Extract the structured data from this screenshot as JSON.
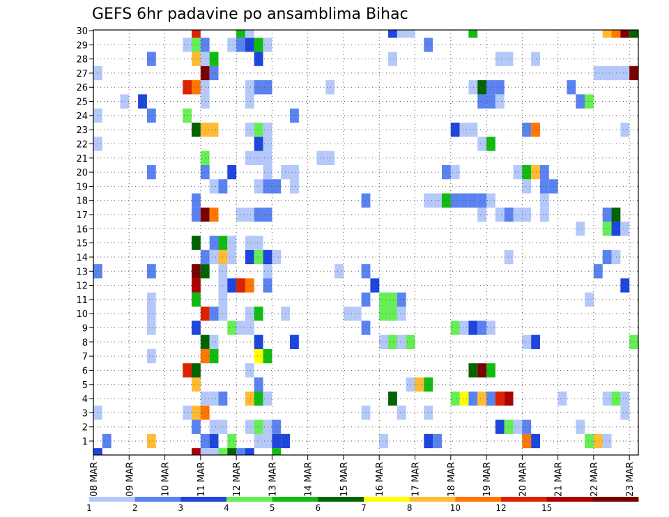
{
  "chart_data": {
    "type": "heatmap",
    "title": "GEFS 6hr padavine po ansamblima Bihac",
    "xlabel": "",
    "ylabel": "",
    "x_tick_labels": [
      "08 MAR",
      "09 MAR",
      "10 MAR",
      "11 MAR",
      "12 MAR",
      "13 MAR",
      "14 MAR",
      "15 MAR",
      "16 MAR",
      "17 MAR",
      "18 MAR",
      "19 MAR",
      "20 MAR",
      "21 MAR",
      "22 MAR",
      "23 MAR"
    ],
    "y_tick_labels": [
      "1",
      "2",
      "3",
      "4",
      "5",
      "6",
      "7",
      "8",
      "9",
      "10",
      "11",
      "12",
      "13",
      "14",
      "15",
      "16",
      "17",
      "18",
      "19",
      "20",
      "21",
      "22",
      "23",
      "24",
      "25",
      "26",
      "27",
      "28",
      "29",
      "30"
    ],
    "x_unit": "6-hour step (4 per day)",
    "y_range": [
      1,
      30
    ],
    "grid": true,
    "legend_position": "bottom",
    "color_levels": [
      "1",
      "2",
      "3",
      "4",
      "5",
      "6",
      "7",
      "8",
      "10",
      "12",
      "15",
      "20"
    ],
    "colors": [
      "#b4c8fa",
      "#5a82f0",
      "#1e46dc",
      "#66ee55",
      "#11bb11",
      "#006400",
      "#ffff00",
      "#ffbb33",
      "#ff7700",
      "#dd2200",
      "#aa0000",
      "#7a0000"
    ],
    "cells": [
      [
        1,
        1,
        2
      ],
      [
        1,
        6,
        8
      ],
      [
        1,
        12,
        2
      ],
      [
        1,
        13,
        3
      ],
      [
        1,
        15,
        4
      ],
      [
        1,
        18,
        1
      ],
      [
        1,
        19,
        1
      ],
      [
        1,
        20,
        3
      ],
      [
        1,
        21,
        3
      ],
      [
        1,
        32,
        1
      ],
      [
        1,
        37,
        3
      ],
      [
        1,
        38,
        2
      ],
      [
        1,
        48,
        10
      ],
      [
        1,
        49,
        3
      ],
      [
        1,
        55,
        4
      ],
      [
        1,
        56,
        8
      ],
      [
        1,
        57,
        1
      ],
      [
        2,
        11,
        2
      ],
      [
        2,
        13,
        1
      ],
      [
        2,
        14,
        1
      ],
      [
        2,
        17,
        1
      ],
      [
        2,
        18,
        4
      ],
      [
        2,
        19,
        1
      ],
      [
        2,
        20,
        2
      ],
      [
        2,
        45,
        3
      ],
      [
        2,
        46,
        4
      ],
      [
        2,
        47,
        1
      ],
      [
        2,
        48,
        2
      ],
      [
        2,
        54,
        1
      ],
      [
        3,
        0,
        1
      ],
      [
        3,
        10,
        1
      ],
      [
        3,
        11,
        8
      ],
      [
        3,
        12,
        10
      ],
      [
        3,
        30,
        1
      ],
      [
        3,
        34,
        1
      ],
      [
        3,
        37,
        1
      ],
      [
        3,
        59,
        1
      ],
      [
        4,
        12,
        1
      ],
      [
        4,
        13,
        1
      ],
      [
        4,
        14,
        2
      ],
      [
        4,
        17,
        8
      ],
      [
        4,
        18,
        5
      ],
      [
        4,
        19,
        1
      ],
      [
        4,
        33,
        6
      ],
      [
        4,
        40,
        4
      ],
      [
        4,
        41,
        7
      ],
      [
        4,
        42,
        2
      ],
      [
        4,
        43,
        8
      ],
      [
        4,
        44,
        2
      ],
      [
        4,
        45,
        12
      ],
      [
        4,
        46,
        15
      ],
      [
        4,
        52,
        1
      ],
      [
        4,
        57,
        1
      ],
      [
        4,
        58,
        4
      ],
      [
        4,
        59,
        1
      ],
      [
        5,
        11,
        8
      ],
      [
        5,
        18,
        2
      ],
      [
        5,
        35,
        1
      ],
      [
        5,
        36,
        8
      ],
      [
        5,
        37,
        5
      ],
      [
        6,
        10,
        12
      ],
      [
        6,
        11,
        6
      ],
      [
        6,
        17,
        1
      ],
      [
        6,
        42,
        6
      ],
      [
        6,
        43,
        20
      ],
      [
        6,
        44,
        5
      ],
      [
        7,
        6,
        1
      ],
      [
        7,
        12,
        10
      ],
      [
        7,
        13,
        5
      ],
      [
        7,
        18,
        7
      ],
      [
        7,
        19,
        5
      ],
      [
        8,
        12,
        6
      ],
      [
        8,
        13,
        1
      ],
      [
        8,
        18,
        3
      ],
      [
        8,
        22,
        3
      ],
      [
        8,
        32,
        1
      ],
      [
        8,
        33,
        4
      ],
      [
        8,
        34,
        1
      ],
      [
        8,
        35,
        4
      ],
      [
        8,
        48,
        1
      ],
      [
        8,
        49,
        3
      ],
      [
        8,
        60,
        4
      ],
      [
        9,
        6,
        1
      ],
      [
        9,
        11,
        3
      ],
      [
        9,
        15,
        4
      ],
      [
        9,
        16,
        1
      ],
      [
        9,
        17,
        1
      ],
      [
        9,
        30,
        2
      ],
      [
        9,
        40,
        4
      ],
      [
        9,
        41,
        1
      ],
      [
        9,
        42,
        3
      ],
      [
        9,
        43,
        2
      ],
      [
        9,
        44,
        1
      ],
      [
        10,
        6,
        1
      ],
      [
        10,
        12,
        12
      ],
      [
        10,
        13,
        2
      ],
      [
        10,
        14,
        1
      ],
      [
        10,
        17,
        1
      ],
      [
        10,
        18,
        5
      ],
      [
        10,
        21,
        1
      ],
      [
        10,
        28,
        1
      ],
      [
        10,
        29,
        1
      ],
      [
        10,
        32,
        4
      ],
      [
        10,
        33,
        4
      ],
      [
        10,
        34,
        1
      ],
      [
        11,
        6,
        1
      ],
      [
        11,
        11,
        5
      ],
      [
        11,
        14,
        1
      ],
      [
        11,
        30,
        2
      ],
      [
        11,
        32,
        4
      ],
      [
        11,
        33,
        4
      ],
      [
        11,
        34,
        2
      ],
      [
        11,
        55,
        1
      ],
      [
        12,
        11,
        15
      ],
      [
        12,
        14,
        1
      ],
      [
        12,
        15,
        3
      ],
      [
        12,
        16,
        12
      ],
      [
        12,
        17,
        10
      ],
      [
        12,
        19,
        2
      ],
      [
        12,
        31,
        3
      ],
      [
        12,
        59,
        3
      ],
      [
        13,
        0,
        2
      ],
      [
        13,
        6,
        2
      ],
      [
        13,
        11,
        20
      ],
      [
        13,
        12,
        6
      ],
      [
        13,
        14,
        1
      ],
      [
        13,
        19,
        1
      ],
      [
        13,
        27,
        1
      ],
      [
        13,
        30,
        2
      ],
      [
        13,
        56,
        2
      ],
      [
        14,
        12,
        2
      ],
      [
        14,
        13,
        1
      ],
      [
        14,
        14,
        8
      ],
      [
        14,
        15,
        1
      ],
      [
        14,
        17,
        3
      ],
      [
        14,
        18,
        4
      ],
      [
        14,
        19,
        3
      ],
      [
        14,
        20,
        1
      ],
      [
        14,
        46,
        1
      ],
      [
        14,
        57,
        2
      ],
      [
        14,
        58,
        1
      ],
      [
        15,
        11,
        6
      ],
      [
        15,
        13,
        2
      ],
      [
        15,
        14,
        5
      ],
      [
        15,
        15,
        1
      ],
      [
        15,
        17,
        1
      ],
      [
        15,
        18,
        1
      ],
      [
        16,
        54,
        1
      ],
      [
        16,
        57,
        4
      ],
      [
        16,
        58,
        3
      ],
      [
        16,
        59,
        1
      ],
      [
        17,
        11,
        2
      ],
      [
        17,
        12,
        20
      ],
      [
        17,
        13,
        10
      ],
      [
        17,
        16,
        1
      ],
      [
        17,
        17,
        1
      ],
      [
        17,
        18,
        2
      ],
      [
        17,
        19,
        2
      ],
      [
        17,
        43,
        1
      ],
      [
        17,
        45,
        1
      ],
      [
        17,
        46,
        2
      ],
      [
        17,
        47,
        1
      ],
      [
        17,
        48,
        1
      ],
      [
        17,
        50,
        1
      ],
      [
        17,
        57,
        2
      ],
      [
        17,
        58,
        6
      ],
      [
        18,
        11,
        2
      ],
      [
        18,
        30,
        2
      ],
      [
        18,
        37,
        1
      ],
      [
        18,
        38,
        1
      ],
      [
        18,
        39,
        5
      ],
      [
        18,
        40,
        2
      ],
      [
        18,
        41,
        2
      ],
      [
        18,
        42,
        2
      ],
      [
        18,
        43,
        2
      ],
      [
        18,
        44,
        1
      ],
      [
        18,
        50,
        1
      ],
      [
        19,
        13,
        1
      ],
      [
        19,
        14,
        2
      ],
      [
        19,
        18,
        1
      ],
      [
        19,
        19,
        2
      ],
      [
        19,
        20,
        2
      ],
      [
        19,
        22,
        1
      ],
      [
        19,
        48,
        1
      ],
      [
        19,
        50,
        2
      ],
      [
        19,
        51,
        2
      ],
      [
        20,
        6,
        2
      ],
      [
        20,
        12,
        2
      ],
      [
        20,
        15,
        3
      ],
      [
        20,
        19,
        1
      ],
      [
        20,
        21,
        1
      ],
      [
        20,
        22,
        1
      ],
      [
        20,
        39,
        2
      ],
      [
        20,
        40,
        1
      ],
      [
        20,
        47,
        1
      ],
      [
        20,
        48,
        5
      ],
      [
        20,
        49,
        8
      ],
      [
        20,
        50,
        2
      ],
      [
        21,
        12,
        4
      ],
      [
        21,
        17,
        1
      ],
      [
        21,
        18,
        1
      ],
      [
        21,
        19,
        1
      ],
      [
        21,
        25,
        1
      ],
      [
        21,
        26,
        1
      ],
      [
        22,
        0,
        1
      ],
      [
        22,
        18,
        3
      ],
      [
        22,
        19,
        1
      ],
      [
        22,
        43,
        1
      ],
      [
        22,
        44,
        5
      ],
      [
        23,
        11,
        6
      ],
      [
        23,
        12,
        8
      ],
      [
        23,
        13,
        8
      ],
      [
        23,
        17,
        1
      ],
      [
        23,
        18,
        4
      ],
      [
        23,
        19,
        1
      ],
      [
        23,
        40,
        3
      ],
      [
        23,
        41,
        1
      ],
      [
        23,
        42,
        1
      ],
      [
        23,
        48,
        2
      ],
      [
        23,
        49,
        10
      ],
      [
        23,
        59,
        1
      ],
      [
        24,
        0,
        1
      ],
      [
        24,
        6,
        2
      ],
      [
        24,
        10,
        4
      ],
      [
        24,
        22,
        2
      ],
      [
        25,
        3,
        1
      ],
      [
        25,
        5,
        3
      ],
      [
        25,
        12,
        1
      ],
      [
        25,
        17,
        1
      ],
      [
        25,
        43,
        2
      ],
      [
        25,
        44,
        2
      ],
      [
        25,
        45,
        1
      ],
      [
        25,
        54,
        2
      ],
      [
        25,
        55,
        4
      ],
      [
        26,
        10,
        12
      ],
      [
        26,
        11,
        10
      ],
      [
        26,
        12,
        1
      ],
      [
        26,
        17,
        1
      ],
      [
        26,
        18,
        2
      ],
      [
        26,
        19,
        2
      ],
      [
        26,
        26,
        1
      ],
      [
        26,
        42,
        1
      ],
      [
        26,
        43,
        6
      ],
      [
        26,
        44,
        2
      ],
      [
        26,
        45,
        2
      ],
      [
        26,
        53,
        2
      ],
      [
        27,
        0,
        1
      ],
      [
        27,
        12,
        20
      ],
      [
        27,
        13,
        2
      ],
      [
        27,
        56,
        1
      ],
      [
        27,
        57,
        1
      ],
      [
        27,
        58,
        1
      ],
      [
        27,
        59,
        1
      ],
      [
        27,
        60,
        20
      ],
      [
        28,
        6,
        2
      ],
      [
        28,
        11,
        8
      ],
      [
        28,
        12,
        1
      ],
      [
        28,
        13,
        5
      ],
      [
        28,
        18,
        3
      ],
      [
        28,
        33,
        1
      ],
      [
        28,
        45,
        1
      ],
      [
        28,
        46,
        1
      ],
      [
        28,
        49,
        1
      ],
      [
        29,
        10,
        1
      ],
      [
        29,
        11,
        4
      ],
      [
        29,
        12,
        2
      ],
      [
        29,
        15,
        1
      ],
      [
        29,
        16,
        2
      ],
      [
        29,
        17,
        3
      ],
      [
        29,
        18,
        5
      ],
      [
        29,
        19,
        1
      ],
      [
        29,
        37,
        2
      ],
      [
        30,
        11,
        12
      ],
      [
        30,
        16,
        5
      ],
      [
        30,
        17,
        1
      ],
      [
        30,
        33,
        3
      ],
      [
        30,
        34,
        1
      ],
      [
        30,
        35,
        1
      ],
      [
        30,
        42,
        5
      ],
      [
        30,
        57,
        8
      ],
      [
        30,
        58,
        10
      ],
      [
        30,
        59,
        20
      ],
      [
        30,
        60,
        6
      ],
      [
        0,
        0,
        3
      ],
      [
        0,
        11,
        15
      ],
      [
        0,
        12,
        1
      ],
      [
        0,
        13,
        1
      ],
      [
        0,
        14,
        4
      ],
      [
        0,
        15,
        6
      ],
      [
        0,
        16,
        2
      ],
      [
        0,
        17,
        3
      ],
      [
        0,
        20,
        5
      ]
    ]
  }
}
